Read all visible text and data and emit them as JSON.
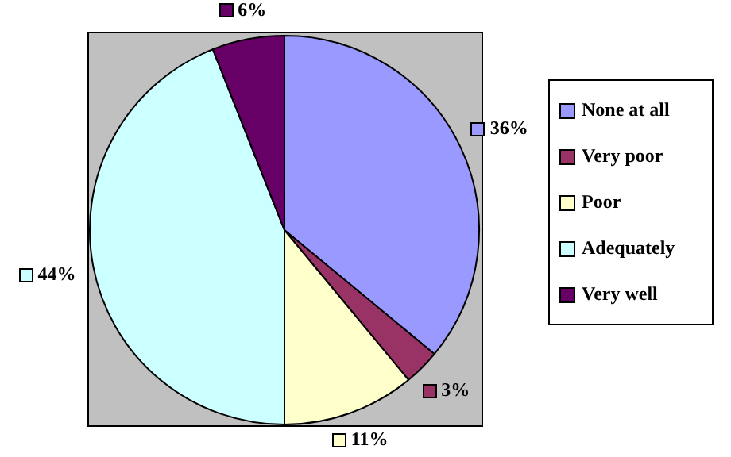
{
  "chart_data": {
    "type": "pie",
    "categories": [
      "None at all",
      "Very poor",
      "Poor",
      "Adequately",
      "Very well"
    ],
    "values": [
      36,
      3,
      11,
      44,
      6
    ],
    "colors": [
      "#9999ff",
      "#993366",
      "#ffffcc",
      "#ccffff",
      "#660066"
    ],
    "value_labels": [
      "36%",
      "3%",
      "11%",
      "44%",
      "6%"
    ],
    "legend": "right"
  }
}
